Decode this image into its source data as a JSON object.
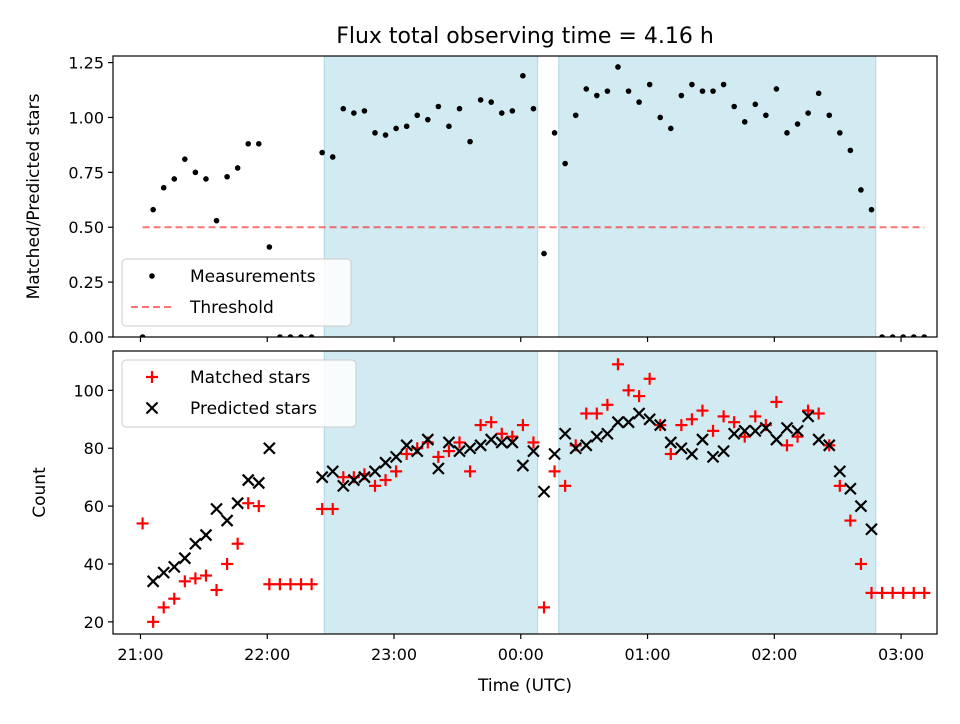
{
  "figure": {
    "title": "Flux total observing time = 4.16 h",
    "xlabel": "Time (UTC)"
  },
  "colors": {
    "span": "#add8e6",
    "measurement": "#000000",
    "threshold": "#ff0000",
    "matched": "#ff0000",
    "predicted": "#000000"
  },
  "chart_data": [
    {
      "type": "scatter",
      "ylabel": "Matched/Predicted stars",
      "ylim": [
        0,
        1.28
      ],
      "yticks": [
        0,
        0.25,
        0.5,
        0.75,
        1.0,
        1.25
      ],
      "ytick_labels": [
        "0.00",
        "0.25",
        "0.50",
        "0.75",
        "1.00",
        "1.25"
      ],
      "xlim": [
        "20:47",
        "03:17"
      ],
      "xticks": [
        "21:00",
        "22:00",
        "23:00",
        "00:00",
        "01:00",
        "02:00",
        "03:00"
      ],
      "shaded_intervals": [
        [
          "22:27",
          "00:08"
        ],
        [
          "00:18",
          "02:48"
        ]
      ],
      "legend": {
        "position": "lower left",
        "entries": [
          "Measurements",
          "Threshold"
        ]
      },
      "series": [
        {
          "name": "Measurements",
          "marker": "dot",
          "points": [
            [
              "21:01",
              0.0
            ],
            [
              "21:06",
              0.58
            ],
            [
              "21:11",
              0.68
            ],
            [
              "21:16",
              0.72
            ],
            [
              "21:21",
              0.81
            ],
            [
              "21:26",
              0.75
            ],
            [
              "21:31",
              0.72
            ],
            [
              "21:36",
              0.53
            ],
            [
              "21:41",
              0.73
            ],
            [
              "21:46",
              0.77
            ],
            [
              "21:51",
              0.88
            ],
            [
              "21:56",
              0.88
            ],
            [
              "22:01",
              0.41
            ],
            [
              "22:06",
              0.0
            ],
            [
              "22:11",
              0.0
            ],
            [
              "22:16",
              0.0
            ],
            [
              "22:21",
              0.0
            ],
            [
              "22:26",
              0.84
            ],
            [
              "22:31",
              0.82
            ],
            [
              "22:36",
              1.04
            ],
            [
              "22:41",
              1.02
            ],
            [
              "22:46",
              1.03
            ],
            [
              "22:51",
              0.93
            ],
            [
              "22:56",
              0.92
            ],
            [
              "23:01",
              0.95
            ],
            [
              "23:06",
              0.96
            ],
            [
              "23:11",
              1.01
            ],
            [
              "23:16",
              0.99
            ],
            [
              "23:21",
              1.05
            ],
            [
              "23:26",
              0.96
            ],
            [
              "23:31",
              1.04
            ],
            [
              "23:36",
              0.89
            ],
            [
              "23:41",
              1.08
            ],
            [
              "23:46",
              1.07
            ],
            [
              "23:51",
              1.02
            ],
            [
              "23:56",
              1.03
            ],
            [
              "00:01",
              1.19
            ],
            [
              "00:06",
              1.04
            ],
            [
              "00:11",
              0.38
            ],
            [
              "00:16",
              0.93
            ],
            [
              "00:21",
              0.79
            ],
            [
              "00:26",
              1.01
            ],
            [
              "00:31",
              1.13
            ],
            [
              "00:36",
              1.1
            ],
            [
              "00:41",
              1.12
            ],
            [
              "00:46",
              1.23
            ],
            [
              "00:51",
              1.12
            ],
            [
              "00:56",
              1.07
            ],
            [
              "01:01",
              1.15
            ],
            [
              "01:06",
              1.0
            ],
            [
              "01:11",
              0.95
            ],
            [
              "01:16",
              1.1
            ],
            [
              "01:21",
              1.15
            ],
            [
              "01:26",
              1.12
            ],
            [
              "01:31",
              1.12
            ],
            [
              "01:36",
              1.15
            ],
            [
              "01:41",
              1.05
            ],
            [
              "01:46",
              0.98
            ],
            [
              "01:51",
              1.06
            ],
            [
              "01:56",
              1.01
            ],
            [
              "02:01",
              1.13
            ],
            [
              "02:06",
              0.93
            ],
            [
              "02:11",
              0.97
            ],
            [
              "02:16",
              1.02
            ],
            [
              "02:21",
              1.11
            ],
            [
              "02:26",
              1.01
            ],
            [
              "02:31",
              0.93
            ],
            [
              "02:36",
              0.85
            ],
            [
              "02:41",
              0.67
            ],
            [
              "02:46",
              0.58
            ],
            [
              "02:51",
              0.0
            ],
            [
              "02:56",
              0.0
            ],
            [
              "03:01",
              0.0
            ],
            [
              "03:06",
              0.0
            ],
            [
              "03:11",
              0.0
            ]
          ]
        },
        {
          "name": "Threshold",
          "marker": "dashed-line",
          "points": [
            [
              "21:01",
              0.5
            ],
            [
              "03:11",
              0.5
            ]
          ]
        }
      ]
    },
    {
      "type": "scatter",
      "ylabel": "Count",
      "ylim": [
        15.8,
        113.6
      ],
      "yticks": [
        20,
        40,
        60,
        80,
        100
      ],
      "ytick_labels": [
        "20",
        "40",
        "60",
        "80",
        "100"
      ],
      "xlim": [
        "20:47",
        "03:17"
      ],
      "xticks": [
        "21:00",
        "22:00",
        "23:00",
        "00:00",
        "01:00",
        "02:00",
        "03:00"
      ],
      "xtick_labels": [
        "21:00",
        "22:00",
        "23:00",
        "00:00",
        "01:00",
        "02:00",
        "03:00"
      ],
      "shaded_intervals": [
        [
          "22:27",
          "00:08"
        ],
        [
          "00:18",
          "02:48"
        ]
      ],
      "legend": {
        "position": "upper left",
        "entries": [
          "Matched stars",
          "Predicted stars"
        ]
      },
      "series": [
        {
          "name": "Matched stars",
          "marker": "plus",
          "points": [
            [
              "21:01",
              54
            ],
            [
              "21:06",
              20
            ],
            [
              "21:11",
              25
            ],
            [
              "21:16",
              28
            ],
            [
              "21:21",
              34
            ],
            [
              "21:26",
              35
            ],
            [
              "21:31",
              36
            ],
            [
              "21:36",
              31
            ],
            [
              "21:41",
              40
            ],
            [
              "21:46",
              47
            ],
            [
              "21:51",
              61
            ],
            [
              "21:56",
              60
            ],
            [
              "22:01",
              33
            ],
            [
              "22:06",
              33
            ],
            [
              "22:11",
              33
            ],
            [
              "22:16",
              33
            ],
            [
              "22:21",
              33
            ],
            [
              "22:26",
              59
            ],
            [
              "22:31",
              59
            ],
            [
              "22:36",
              70
            ],
            [
              "22:41",
              70
            ],
            [
              "22:46",
              71
            ],
            [
              "22:51",
              67
            ],
            [
              "22:56",
              69
            ],
            [
              "23:01",
              72
            ],
            [
              "23:06",
              78
            ],
            [
              "23:11",
              80
            ],
            [
              "23:16",
              82
            ],
            [
              "23:21",
              77
            ],
            [
              "23:26",
              79
            ],
            [
              "23:31",
              82
            ],
            [
              "23:36",
              72
            ],
            [
              "23:41",
              88
            ],
            [
              "23:46",
              89
            ],
            [
              "23:51",
              85
            ],
            [
              "23:56",
              84
            ],
            [
              "00:01",
              88
            ],
            [
              "00:06",
              82
            ],
            [
              "00:11",
              25
            ],
            [
              "00:16",
              72
            ],
            [
              "00:21",
              67
            ],
            [
              "00:26",
              81
            ],
            [
              "00:31",
              92
            ],
            [
              "00:36",
              92
            ],
            [
              "00:41",
              95
            ],
            [
              "00:46",
              109
            ],
            [
              "00:51",
              100
            ],
            [
              "00:56",
              98
            ],
            [
              "01:01",
              104
            ],
            [
              "01:06",
              88
            ],
            [
              "01:11",
              78
            ],
            [
              "01:16",
              88
            ],
            [
              "01:21",
              90
            ],
            [
              "01:26",
              93
            ],
            [
              "01:31",
              86
            ],
            [
              "01:36",
              91
            ],
            [
              "01:41",
              89
            ],
            [
              "01:46",
              84
            ],
            [
              "01:51",
              91
            ],
            [
              "01:56",
              88
            ],
            [
              "02:01",
              96
            ],
            [
              "02:06",
              81
            ],
            [
              "02:11",
              84
            ],
            [
              "02:16",
              93
            ],
            [
              "02:21",
              92
            ],
            [
              "02:26",
              81
            ],
            [
              "02:31",
              67
            ],
            [
              "02:36",
              55
            ],
            [
              "02:41",
              40
            ],
            [
              "02:46",
              30
            ],
            [
              "02:51",
              30
            ],
            [
              "02:56",
              30
            ],
            [
              "03:01",
              30
            ],
            [
              "03:06",
              30
            ],
            [
              "03:11",
              30
            ]
          ]
        },
        {
          "name": "Predicted stars",
          "marker": "x",
          "points": [
            [
              "21:06",
              34
            ],
            [
              "21:11",
              37
            ],
            [
              "21:16",
              39
            ],
            [
              "21:21",
              42
            ],
            [
              "21:26",
              47
            ],
            [
              "21:31",
              50
            ],
            [
              "21:36",
              59
            ],
            [
              "21:41",
              55
            ],
            [
              "21:46",
              61
            ],
            [
              "21:51",
              69
            ],
            [
              "21:56",
              68
            ],
            [
              "22:01",
              80
            ],
            [
              "22:26",
              70
            ],
            [
              "22:31",
              72
            ],
            [
              "22:36",
              67
            ],
            [
              "22:41",
              69
            ],
            [
              "22:46",
              70
            ],
            [
              "22:51",
              72
            ],
            [
              "22:56",
              75
            ],
            [
              "23:01",
              77
            ],
            [
              "23:06",
              81
            ],
            [
              "23:11",
              79
            ],
            [
              "23:16",
              83
            ],
            [
              "23:21",
              73
            ],
            [
              "23:26",
              82
            ],
            [
              "23:31",
              79
            ],
            [
              "23:36",
              80
            ],
            [
              "23:41",
              81
            ],
            [
              "23:46",
              83
            ],
            [
              "23:51",
              82
            ],
            [
              "23:56",
              82
            ],
            [
              "00:01",
              74
            ],
            [
              "00:06",
              79
            ],
            [
              "00:11",
              65
            ],
            [
              "00:16",
              78
            ],
            [
              "00:21",
              85
            ],
            [
              "00:26",
              80
            ],
            [
              "00:31",
              81
            ],
            [
              "00:36",
              84
            ],
            [
              "00:41",
              85
            ],
            [
              "00:46",
              89
            ],
            [
              "00:51",
              89
            ],
            [
              "00:56",
              92
            ],
            [
              "01:01",
              90
            ],
            [
              "01:06",
              88
            ],
            [
              "01:11",
              82
            ],
            [
              "01:16",
              80
            ],
            [
              "01:21",
              78
            ],
            [
              "01:26",
              83
            ],
            [
              "01:31",
              77
            ],
            [
              "01:36",
              79
            ],
            [
              "01:41",
              85
            ],
            [
              "01:46",
              86
            ],
            [
              "01:51",
              86
            ],
            [
              "01:56",
              87
            ],
            [
              "02:01",
              83
            ],
            [
              "02:06",
              87
            ],
            [
              "02:11",
              86
            ],
            [
              "02:16",
              91
            ],
            [
              "02:21",
              83
            ],
            [
              "02:26",
              81
            ],
            [
              "02:31",
              72
            ],
            [
              "02:36",
              66
            ],
            [
              "02:41",
              60
            ],
            [
              "02:46",
              52
            ]
          ]
        }
      ]
    }
  ]
}
